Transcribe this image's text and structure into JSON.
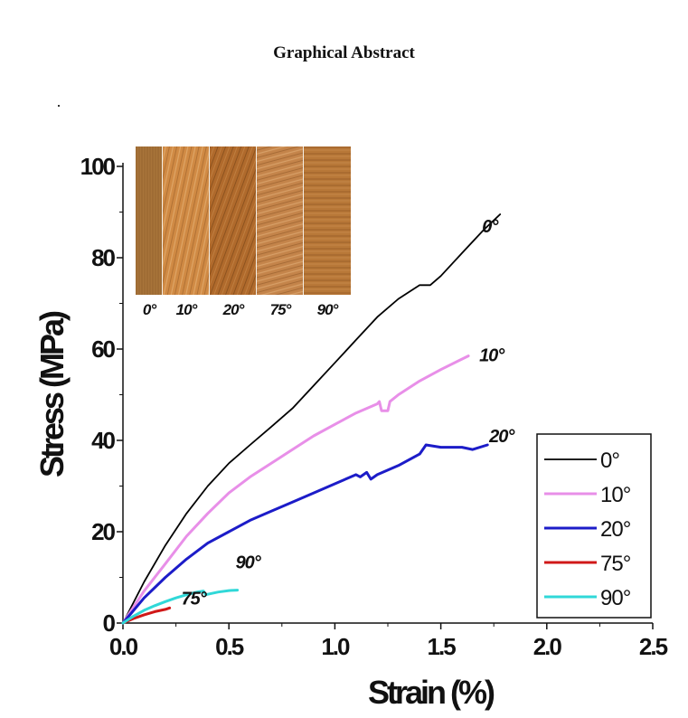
{
  "page": {
    "title": "Graphical Abstract"
  },
  "chart_data": {
    "type": "line",
    "title": "",
    "xlabel": "Strain (%)",
    "ylabel": "Stress (MPa)",
    "xlim": [
      0.0,
      2.5
    ],
    "ylim": [
      0,
      100
    ],
    "xticks": [
      "0.0",
      "0.5",
      "1.0",
      "1.5",
      "2.0",
      "2.5"
    ],
    "yticks": [
      "0",
      "20",
      "40",
      "60",
      "80",
      "100"
    ],
    "legend": {
      "position": "bottom-right"
    },
    "grid": false,
    "series": [
      {
        "name": "0°",
        "color": "#000000",
        "end_label": "0°",
        "points": [
          [
            0,
            0
          ],
          [
            0.1,
            9
          ],
          [
            0.2,
            17
          ],
          [
            0.3,
            24
          ],
          [
            0.4,
            30
          ],
          [
            0.5,
            35
          ],
          [
            0.6,
            39
          ],
          [
            0.7,
            43
          ],
          [
            0.8,
            47
          ],
          [
            0.9,
            52
          ],
          [
            1.0,
            57
          ],
          [
            1.1,
            62
          ],
          [
            1.2,
            67
          ],
          [
            1.3,
            71
          ],
          [
            1.4,
            74
          ],
          [
            1.45,
            74
          ],
          [
            1.5,
            76
          ],
          [
            1.6,
            81
          ],
          [
            1.7,
            86
          ],
          [
            1.78,
            89.5
          ]
        ]
      },
      {
        "name": "10°",
        "color": "#e88fe8",
        "end_label": "10°",
        "points": [
          [
            0,
            0
          ],
          [
            0.1,
            7
          ],
          [
            0.2,
            13
          ],
          [
            0.3,
            19
          ],
          [
            0.4,
            24
          ],
          [
            0.5,
            28.5
          ],
          [
            0.6,
            32
          ],
          [
            0.7,
            35
          ],
          [
            0.8,
            38
          ],
          [
            0.9,
            41
          ],
          [
            1.0,
            43.5
          ],
          [
            1.1,
            46
          ],
          [
            1.2,
            48
          ],
          [
            1.21,
            48.5
          ],
          [
            1.22,
            46.5
          ],
          [
            1.25,
            46.5
          ],
          [
            1.26,
            48.5
          ],
          [
            1.3,
            50
          ],
          [
            1.4,
            53
          ],
          [
            1.5,
            55.5
          ],
          [
            1.63,
            58.5
          ]
        ]
      },
      {
        "name": "20°",
        "color": "#1c1cc8",
        "end_label": "20°",
        "points": [
          [
            0,
            0
          ],
          [
            0.1,
            5.5
          ],
          [
            0.2,
            10
          ],
          [
            0.3,
            14
          ],
          [
            0.4,
            17.5
          ],
          [
            0.5,
            20
          ],
          [
            0.6,
            22.5
          ],
          [
            0.7,
            24.5
          ],
          [
            0.8,
            26.5
          ],
          [
            0.9,
            28.5
          ],
          [
            1.0,
            30.5
          ],
          [
            1.1,
            32.5
          ],
          [
            1.12,
            32
          ],
          [
            1.15,
            33
          ],
          [
            1.17,
            31.5
          ],
          [
            1.2,
            32.5
          ],
          [
            1.3,
            34.5
          ],
          [
            1.4,
            37
          ],
          [
            1.43,
            39
          ],
          [
            1.5,
            38.5
          ],
          [
            1.6,
            38.5
          ],
          [
            1.65,
            38
          ],
          [
            1.72,
            39
          ]
        ]
      },
      {
        "name": "75°",
        "color": "#d01818",
        "end_label": "75°",
        "points": [
          [
            0,
            0
          ],
          [
            0.05,
            1
          ],
          [
            0.1,
            1.8
          ],
          [
            0.15,
            2.5
          ],
          [
            0.2,
            3
          ],
          [
            0.22,
            3.3
          ]
        ]
      },
      {
        "name": "90°",
        "color": "#30d8d8",
        "end_label": "90°",
        "points": [
          [
            0,
            0
          ],
          [
            0.05,
            1.5
          ],
          [
            0.1,
            2.8
          ],
          [
            0.15,
            3.8
          ],
          [
            0.2,
            4.7
          ],
          [
            0.25,
            5.5
          ],
          [
            0.3,
            6.2
          ],
          [
            0.35,
            6.8
          ],
          [
            0.38,
            7
          ],
          [
            0.39,
            6.2
          ],
          [
            0.42,
            6.5
          ],
          [
            0.45,
            6.8
          ],
          [
            0.5,
            7.1
          ],
          [
            0.54,
            7.2
          ]
        ]
      }
    ]
  },
  "inset": {
    "angle_labels": [
      "0°",
      "10°",
      "20°",
      "75°",
      "90°"
    ],
    "panel_colors": [
      "#a8743a",
      "#d08a44",
      "#b06a2c",
      "#c4844a",
      "#b87838"
    ]
  }
}
